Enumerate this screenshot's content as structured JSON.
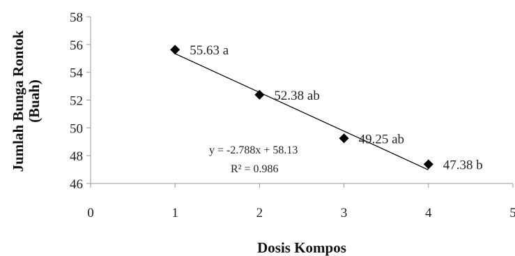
{
  "chart_data": {
    "type": "scatter",
    "xlabel": "Dosis Kompos",
    "ylabel_line1": "Jumlah Bunga Rontok",
    "ylabel_line2": "(Buah)",
    "xlim": [
      0,
      5
    ],
    "ylim": [
      46,
      58
    ],
    "x_ticks": [
      "0",
      "1",
      "2",
      "3",
      "4",
      "5"
    ],
    "y_ticks": [
      "46",
      "48",
      "50",
      "52",
      "54",
      "56",
      "58"
    ],
    "grid": false,
    "points": [
      {
        "x": 1,
        "y": 55.63,
        "label": "55.63 a"
      },
      {
        "x": 2,
        "y": 52.38,
        "label": "52.38 ab"
      },
      {
        "x": 3,
        "y": 49.25,
        "label": "49.25 ab"
      },
      {
        "x": 4,
        "y": 47.38,
        "label": "47.38 b"
      }
    ],
    "trendline": {
      "type": "linear",
      "slope": -2.788,
      "intercept": 58.13,
      "equation": "y = -2.788x + 58.13",
      "r_squared": "R² = 0.986"
    },
    "marker_color": "#000000",
    "line_color": "#000000"
  }
}
